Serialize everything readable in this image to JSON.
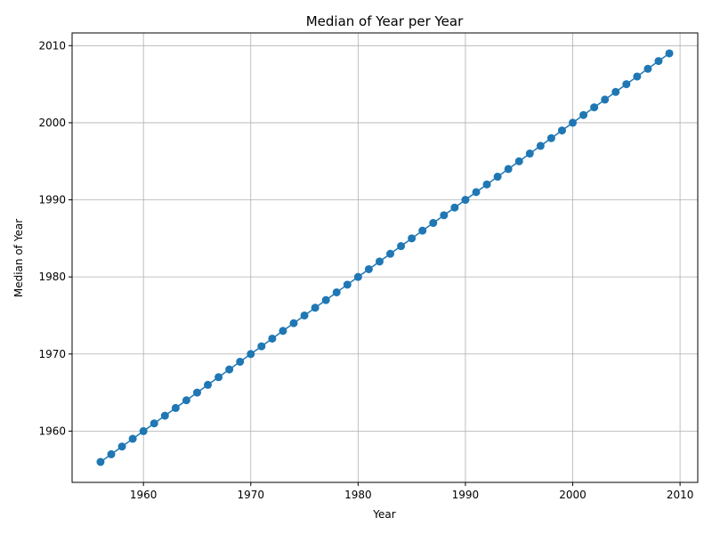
{
  "chart_data": {
    "type": "line",
    "title": "Median of Year per Year",
    "xlabel": "Year",
    "ylabel": "Median of Year",
    "xlim": [
      1953.35,
      2011.65
    ],
    "ylim": [
      1953.35,
      2011.65
    ],
    "xticks": [
      1960,
      1970,
      1980,
      1990,
      2000,
      2010
    ],
    "yticks": [
      1960,
      1970,
      1980,
      1990,
      2000,
      2010
    ],
    "grid": true,
    "marker": "circle",
    "color": "#1f77b4",
    "series": [
      {
        "x": [
          1956,
          1957,
          1958,
          1959,
          1960,
          1961,
          1962,
          1963,
          1964,
          1965,
          1966,
          1967,
          1968,
          1969,
          1970,
          1971,
          1972,
          1973,
          1974,
          1975,
          1976,
          1977,
          1978,
          1979,
          1980,
          1981,
          1982,
          1983,
          1984,
          1985,
          1986,
          1987,
          1988,
          1989,
          1990,
          1991,
          1992,
          1993,
          1994,
          1995,
          1996,
          1997,
          1998,
          1999,
          2000,
          2001,
          2002,
          2003,
          2004,
          2005,
          2006,
          2007,
          2008,
          2009
        ],
        "values": [
          1956,
          1957,
          1958,
          1959,
          1960,
          1961,
          1962,
          1963,
          1964,
          1965,
          1966,
          1967,
          1968,
          1969,
          1970,
          1971,
          1972,
          1973,
          1974,
          1975,
          1976,
          1977,
          1978,
          1979,
          1980,
          1981,
          1982,
          1983,
          1984,
          1985,
          1986,
          1987,
          1988,
          1989,
          1990,
          1991,
          1992,
          1993,
          1994,
          1995,
          1996,
          1997,
          1998,
          1999,
          2000,
          2001,
          2002,
          2003,
          2004,
          2005,
          2006,
          2007,
          2008,
          2009
        ]
      }
    ]
  }
}
